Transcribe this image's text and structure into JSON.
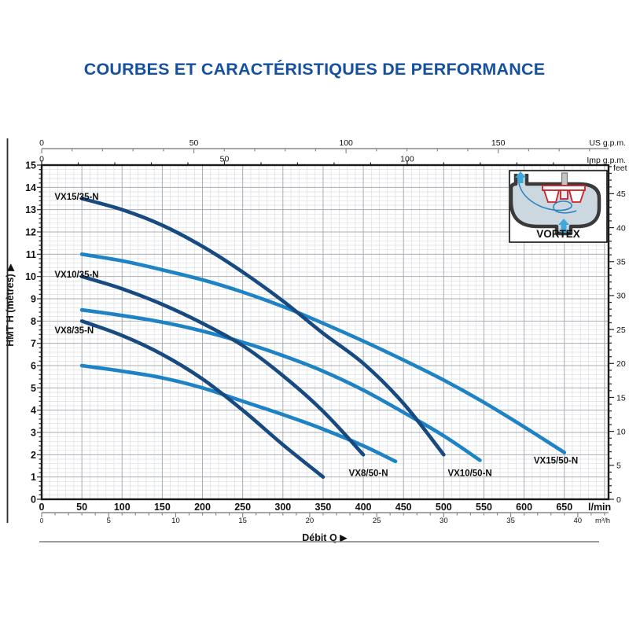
{
  "chart_data": {
    "type": "line",
    "title": "COURBES ET CARACTÉRISTIQUES DE PERFORMANCE",
    "title_color": "#15519e",
    "xlabel": "Débit Q ▶",
    "ylabel": "HMT H (mètres) ▶",
    "axes": {
      "lmin": {
        "name": "l/min",
        "min": 0,
        "max": 705,
        "major_step": 50,
        "minor_step": 10,
        "major_labels": [
          0,
          50,
          100,
          150,
          200,
          250,
          300,
          350,
          400,
          450,
          500,
          550,
          600,
          650
        ]
      },
      "m3h": {
        "name": "m³/h",
        "lmin_per_unit": 16.6667,
        "major_step": 5,
        "minor_step": 1,
        "major_labels": [
          0,
          5,
          10,
          15,
          20,
          25,
          30,
          35,
          40
        ]
      },
      "us_gpm": {
        "name": "US g.p.m.",
        "lmin_per_unit": 3.78541,
        "major_step": 50,
        "minor_step": 10,
        "major_labels": [
          0,
          50,
          100,
          150
        ]
      },
      "imp_gpm": {
        "name": "Imp g.p.m.",
        "lmin_per_unit": 4.54609,
        "major_step": 50,
        "minor_step": 10,
        "major_labels": [
          0,
          50,
          100
        ]
      },
      "metres": {
        "name": "HMT H (mètres)",
        "min": 0,
        "max": 15,
        "major_step": 1,
        "minor_step": 0.2,
        "major_labels": [
          0,
          1,
          2,
          3,
          4,
          5,
          6,
          7,
          8,
          9,
          10,
          11,
          12,
          13,
          14,
          15
        ]
      },
      "feet": {
        "name": "feet",
        "m_per_unit": 0.3048,
        "major_step": 5,
        "minor_step": 1,
        "major_labels": [
          0,
          5,
          10,
          15,
          20,
          25,
          30,
          35,
          40,
          45
        ]
      }
    },
    "series": [
      {
        "name": "VX8/50-N",
        "color": "#1e83c4",
        "label_at": [
          382,
          1.05
        ],
        "points": [
          [
            50,
            6.0
          ],
          [
            100,
            5.75
          ],
          [
            150,
            5.45
          ],
          [
            200,
            5.0
          ],
          [
            250,
            4.4
          ],
          [
            300,
            3.8
          ],
          [
            350,
            3.15
          ],
          [
            400,
            2.4
          ],
          [
            440,
            1.7
          ]
        ]
      },
      {
        "name": "VX10/50-N",
        "color": "#1e83c4",
        "label_at": [
          505,
          1.05
        ],
        "points": [
          [
            50,
            8.5
          ],
          [
            100,
            8.25
          ],
          [
            150,
            7.95
          ],
          [
            200,
            7.55
          ],
          [
            250,
            7.05
          ],
          [
            300,
            6.45
          ],
          [
            350,
            5.75
          ],
          [
            400,
            4.9
          ],
          [
            450,
            3.9
          ],
          [
            500,
            2.85
          ],
          [
            545,
            1.75
          ]
        ]
      },
      {
        "name": "VX15/50-N",
        "color": "#1e83c4",
        "label_at": [
          612,
          1.6
        ],
        "points": [
          [
            50,
            11.0
          ],
          [
            100,
            10.7
          ],
          [
            150,
            10.3
          ],
          [
            200,
            9.85
          ],
          [
            250,
            9.3
          ],
          [
            300,
            8.65
          ],
          [
            350,
            7.9
          ],
          [
            400,
            7.1
          ],
          [
            450,
            6.25
          ],
          [
            500,
            5.35
          ],
          [
            550,
            4.35
          ],
          [
            600,
            3.25
          ],
          [
            650,
            2.1
          ]
        ]
      },
      {
        "name": "VX8/35-N",
        "color": "#174a80",
        "label_at": [
          16,
          7.45
        ],
        "points": [
          [
            50,
            8.0
          ],
          [
            100,
            7.35
          ],
          [
            150,
            6.5
          ],
          [
            200,
            5.4
          ],
          [
            250,
            4.0
          ],
          [
            300,
            2.45
          ],
          [
            350,
            1.0
          ]
        ]
      },
      {
        "name": "VX10/35-N",
        "color": "#174a80",
        "label_at": [
          16,
          9.95
        ],
        "points": [
          [
            50,
            10.0
          ],
          [
            100,
            9.45
          ],
          [
            150,
            8.75
          ],
          [
            200,
            7.9
          ],
          [
            250,
            6.9
          ],
          [
            300,
            5.55
          ],
          [
            350,
            3.95
          ],
          [
            400,
            2.0
          ]
        ]
      },
      {
        "name": "VX15/35-N",
        "color": "#174a80",
        "label_at": [
          16,
          13.45
        ],
        "points": [
          [
            50,
            13.5
          ],
          [
            100,
            13.0
          ],
          [
            150,
            12.3
          ],
          [
            200,
            11.35
          ],
          [
            250,
            10.2
          ],
          [
            300,
            8.9
          ],
          [
            350,
            7.45
          ],
          [
            400,
            6.1
          ],
          [
            450,
            4.3
          ],
          [
            500,
            2.0
          ]
        ]
      }
    ],
    "inset": {
      "label": "VORTEX",
      "body_fill": "#ccd8e0",
      "body_stroke": "#3a3a3a",
      "arrow_color": "#3fa9dc",
      "impeller_color": "#cc2027",
      "swirl_color": "#2b7fc0"
    },
    "grid": {
      "minor_color": "#dadde0",
      "major_color": "#a9adb2",
      "border_color": "#1a1a1a"
    }
  }
}
